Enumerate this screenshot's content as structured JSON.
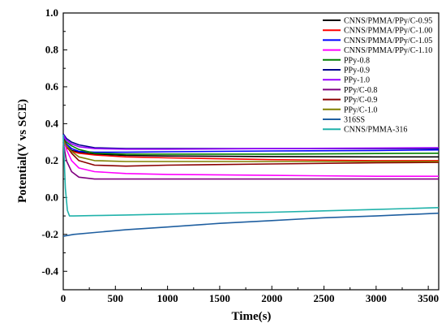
{
  "chart_data": {
    "type": "line",
    "xlabel": "Time(s)",
    "ylabel": "Potential(V vs SCE)",
    "xlim": [
      0,
      3600
    ],
    "ylim": [
      -0.5,
      1.0
    ],
    "xticks": [
      0,
      500,
      1000,
      1500,
      2000,
      2500,
      3000,
      3500
    ],
    "yticks": [
      -0.4,
      -0.2,
      0.0,
      0.2,
      0.4,
      0.6,
      0.8,
      1.0
    ],
    "xtick_labels": [
      "0",
      "500",
      "1000",
      "1500",
      "2000",
      "2500",
      "3000",
      "3500"
    ],
    "ytick_labels": [
      "-0.4",
      "-0.2",
      "0.0",
      "0.2",
      "0.4",
      "0.6",
      "0.8",
      "1.0"
    ],
    "grid": false,
    "legend_position": "top-right",
    "series": [
      {
        "name": "CNNS/PMMA/PPy/C-0.95",
        "color": "#000000",
        "x": [
          0,
          30,
          80,
          150,
          300,
          600,
          1000,
          2000,
          3000,
          3600
        ],
        "y": [
          0.31,
          0.28,
          0.255,
          0.245,
          0.235,
          0.228,
          0.225,
          0.222,
          0.22,
          0.22
        ]
      },
      {
        "name": "CNNS/PMMA/PPy/C-1.00",
        "color": "#ff0000",
        "x": [
          0,
          30,
          80,
          150,
          300,
          600,
          1000,
          2000,
          3000,
          3600
        ],
        "y": [
          0.3,
          0.27,
          0.25,
          0.24,
          0.23,
          0.22,
          0.215,
          0.205,
          0.2,
          0.2
        ]
      },
      {
        "name": "CNNS/PMMA/PPy/C-1.05",
        "color": "#0000ff",
        "x": [
          0,
          30,
          80,
          150,
          300,
          600,
          1000,
          2000,
          3000,
          3600
        ],
        "y": [
          0.33,
          0.29,
          0.265,
          0.25,
          0.245,
          0.245,
          0.248,
          0.252,
          0.255,
          0.258
        ]
      },
      {
        "name": "CNNS/PMMA/PPy/C-1.10",
        "color": "#ff00ff",
        "x": [
          0,
          30,
          80,
          150,
          300,
          600,
          1000,
          2000,
          3000,
          3600
        ],
        "y": [
          0.33,
          0.26,
          0.2,
          0.16,
          0.14,
          0.13,
          0.125,
          0.12,
          0.115,
          0.115
        ]
      },
      {
        "name": "PPy-0.8",
        "color": "#008000",
        "x": [
          0,
          30,
          80,
          150,
          300,
          600,
          1000,
          2000,
          3000,
          3600
        ],
        "y": [
          0.32,
          0.3,
          0.28,
          0.26,
          0.24,
          0.235,
          0.235,
          0.235,
          0.238,
          0.24
        ]
      },
      {
        "name": "PPy-0.9",
        "color": "#00008b",
        "x": [
          0,
          30,
          80,
          150,
          300,
          600,
          1000,
          2000,
          3000,
          3600
        ],
        "y": [
          0.345,
          0.32,
          0.3,
          0.285,
          0.27,
          0.265,
          0.265,
          0.265,
          0.265,
          0.265
        ]
      },
      {
        "name": "PPy-1.0",
        "color": "#9900ff",
        "x": [
          0,
          30,
          80,
          150,
          300,
          600,
          1000,
          2000,
          3000,
          3600
        ],
        "y": [
          0.34,
          0.31,
          0.29,
          0.275,
          0.265,
          0.262,
          0.262,
          0.265,
          0.268,
          0.27
        ]
      },
      {
        "name": "PPy/C-0.8",
        "color": "#800080",
        "x": [
          0,
          30,
          80,
          150,
          300,
          600,
          1000,
          2000,
          3000,
          3600
        ],
        "y": [
          0.3,
          0.2,
          0.14,
          0.11,
          0.1,
          0.1,
          0.1,
          0.1,
          0.1,
          0.1
        ]
      },
      {
        "name": "PPy/C-0.9",
        "color": "#8b0000",
        "x": [
          0,
          30,
          80,
          150,
          300,
          600,
          1000,
          2000,
          3000,
          3600
        ],
        "y": [
          0.32,
          0.28,
          0.24,
          0.2,
          0.175,
          0.17,
          0.175,
          0.182,
          0.188,
          0.19
        ]
      },
      {
        "name": "PPy/C-1.0",
        "color": "#808000",
        "x": [
          0,
          30,
          80,
          150,
          300,
          600,
          1000,
          2000,
          3000,
          3600
        ],
        "y": [
          0.31,
          0.28,
          0.25,
          0.22,
          0.2,
          0.195,
          0.195,
          0.195,
          0.195,
          0.195
        ]
      },
      {
        "name": "316SS",
        "color": "#1f5fa0",
        "x": [
          0,
          100,
          300,
          600,
          1000,
          1500,
          2000,
          2500,
          3000,
          3600
        ],
        "y": [
          -0.21,
          -0.2,
          -0.19,
          -0.175,
          -0.16,
          -0.14,
          -0.125,
          -0.11,
          -0.1,
          -0.085
        ]
      },
      {
        "name": "CNNS/PMMA-316",
        "color": "#20b2aa",
        "x": [
          0,
          20,
          40,
          60,
          100,
          300,
          600,
          1000,
          2000,
          3000,
          3600
        ],
        "y": [
          0.34,
          0.05,
          -0.07,
          -0.1,
          -0.1,
          -0.098,
          -0.095,
          -0.09,
          -0.08,
          -0.065,
          -0.055
        ]
      }
    ]
  }
}
